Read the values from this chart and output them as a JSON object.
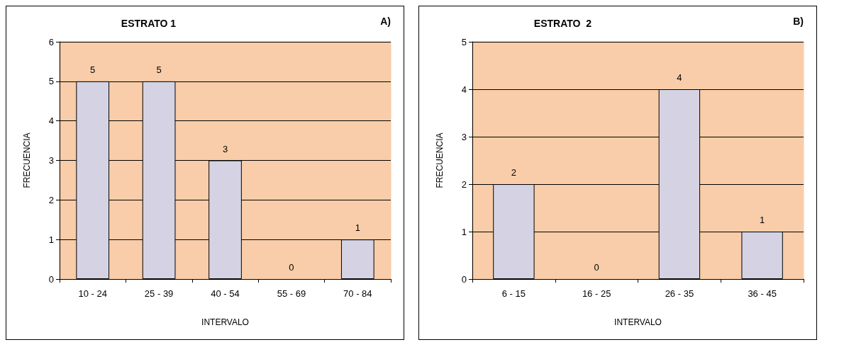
{
  "chart_data": [
    {
      "type": "bar",
      "title": "ESTRATO 1",
      "annotations": [
        "A)"
      ],
      "xlabel": "INTERVALO",
      "ylabel": "FRECUENCIA",
      "categories": [
        "10 - 24",
        "25 - 39",
        "40 - 54",
        "55 - 69",
        "70 - 84"
      ],
      "values": [
        5,
        5,
        3,
        0,
        1
      ],
      "color": "#d5d3e3",
      "ylim": [
        0,
        6
      ],
      "yticks": [
        0,
        1,
        2,
        3,
        4,
        5,
        6
      ],
      "grid": "y",
      "data_labels": true
    },
    {
      "type": "bar",
      "title": "ESTRATO  2",
      "annotations": [
        "B)"
      ],
      "xlabel": "INTERVALO",
      "ylabel": "FRECUENCIA",
      "categories": [
        "6 - 15",
        "16 - 25",
        "26 - 35",
        "36 - 45"
      ],
      "values": [
        2,
        0,
        4,
        1
      ],
      "color": "#d5d3e3",
      "ylim": [
        0,
        5
      ],
      "yticks": [
        0,
        1,
        2,
        3,
        4,
        5
      ],
      "grid": "y",
      "data_labels": true
    }
  ]
}
